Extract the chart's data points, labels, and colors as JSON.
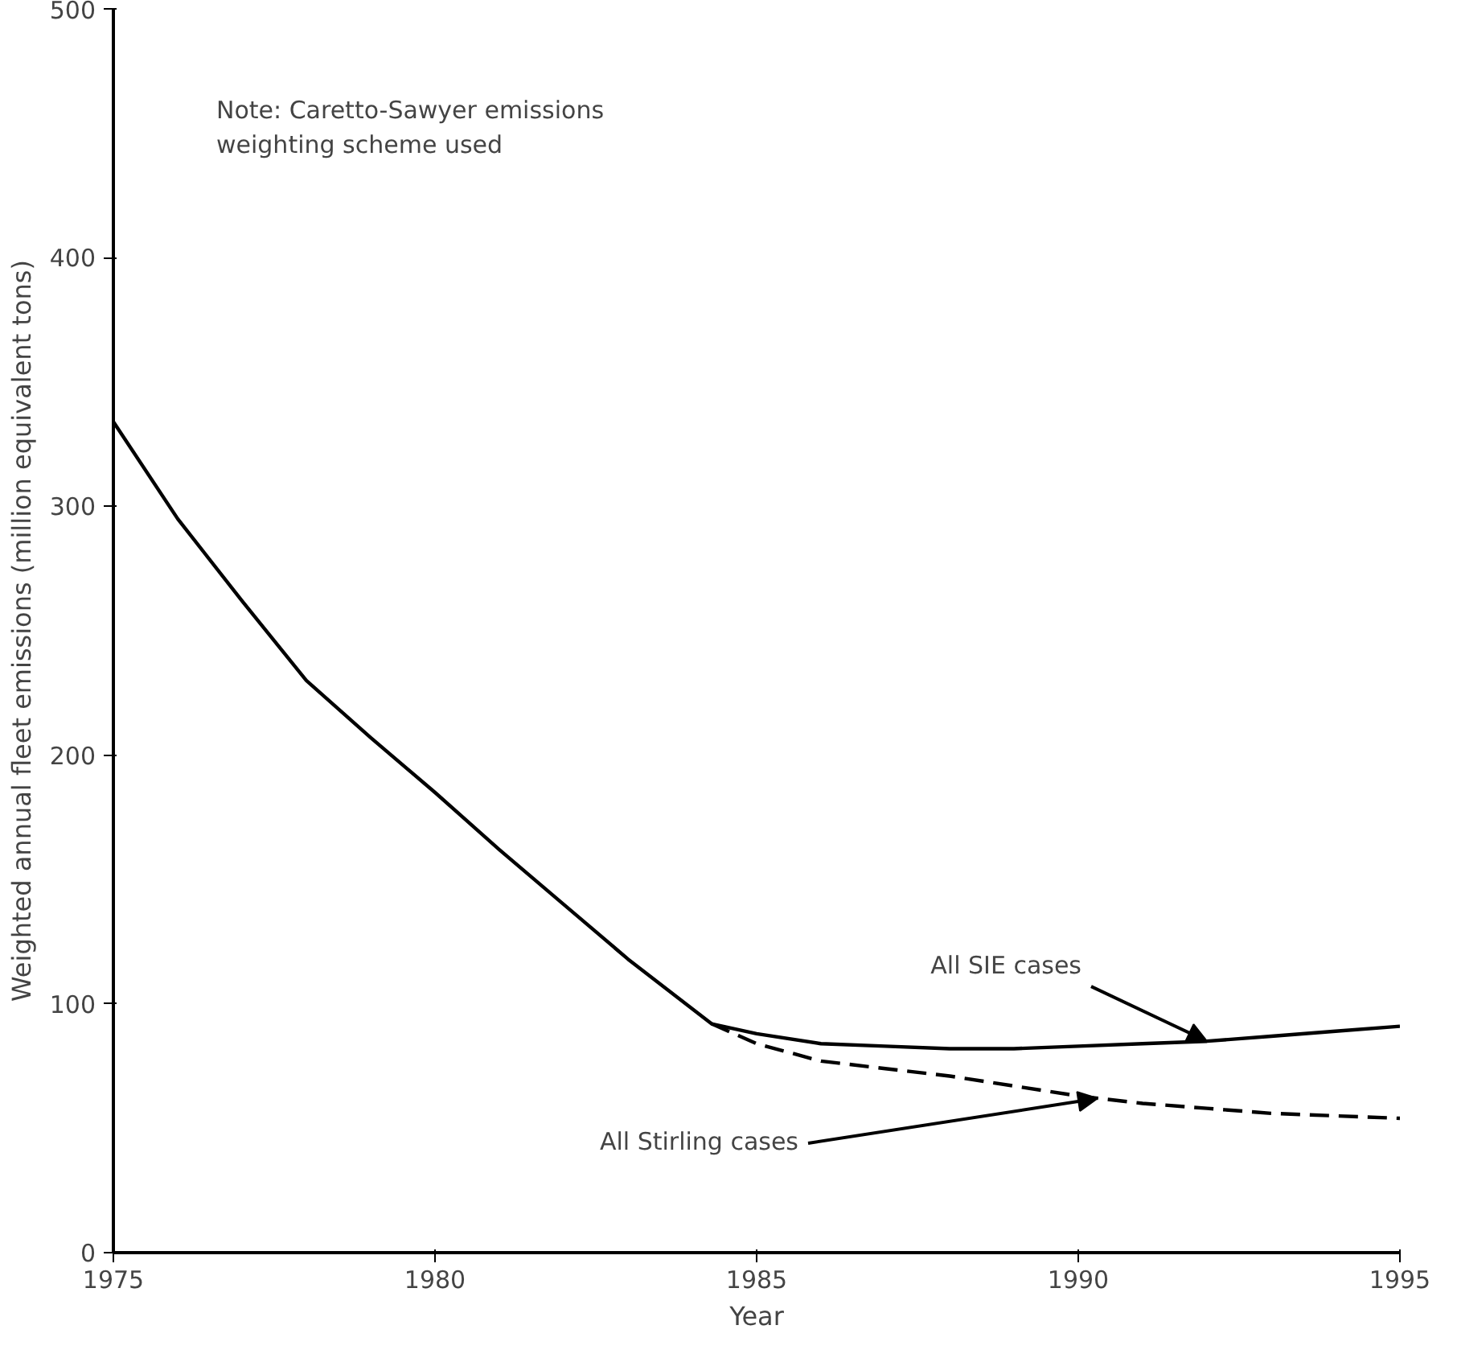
{
  "chart_data": {
    "type": "line",
    "xlabel": "Year",
    "ylabel": "Weighted annual fleet emissions (million equivalent tons)",
    "xlim": [
      1975,
      1995
    ],
    "ylim": [
      0,
      500
    ],
    "xticks": [
      1975,
      1980,
      1985,
      1990,
      1995
    ],
    "yticks": [
      0,
      100,
      200,
      300,
      400,
      500
    ],
    "grid": false,
    "series": [
      {
        "color": "#000000",
        "line_style": "solid",
        "x": [
          1975,
          1976,
          1977,
          1978,
          1979,
          1980,
          1981,
          1982,
          1983,
          1984,
          1984.3,
          1985,
          1986,
          1987,
          1988,
          1989,
          1990,
          1991,
          1992,
          1993,
          1994,
          1995
        ],
        "values": [
          334,
          295,
          262,
          230,
          207,
          185,
          162,
          140,
          118,
          98,
          92,
          88,
          84,
          83,
          82,
          82,
          83,
          84,
          85,
          87,
          89,
          91
        ]
      },
      {
        "color": "#000000",
        "line_style": "dashed",
        "x": [
          1984.3,
          1985,
          1986,
          1987,
          1988,
          1989,
          1990,
          1991,
          1992,
          1993,
          1994,
          1995
        ],
        "values": [
          92,
          84,
          77,
          74,
          71,
          67,
          63,
          60,
          58,
          56,
          55,
          54
        ]
      }
    ],
    "annotations": [
      "Note: Caretto-Sawyer emissions\nweighting scheme used",
      {
        "text": "All SIE cases",
        "x": 1992,
        "y": 85
      },
      {
        "text": "All Stirling cases",
        "x": 1990.3,
        "y": 62
      }
    ]
  }
}
